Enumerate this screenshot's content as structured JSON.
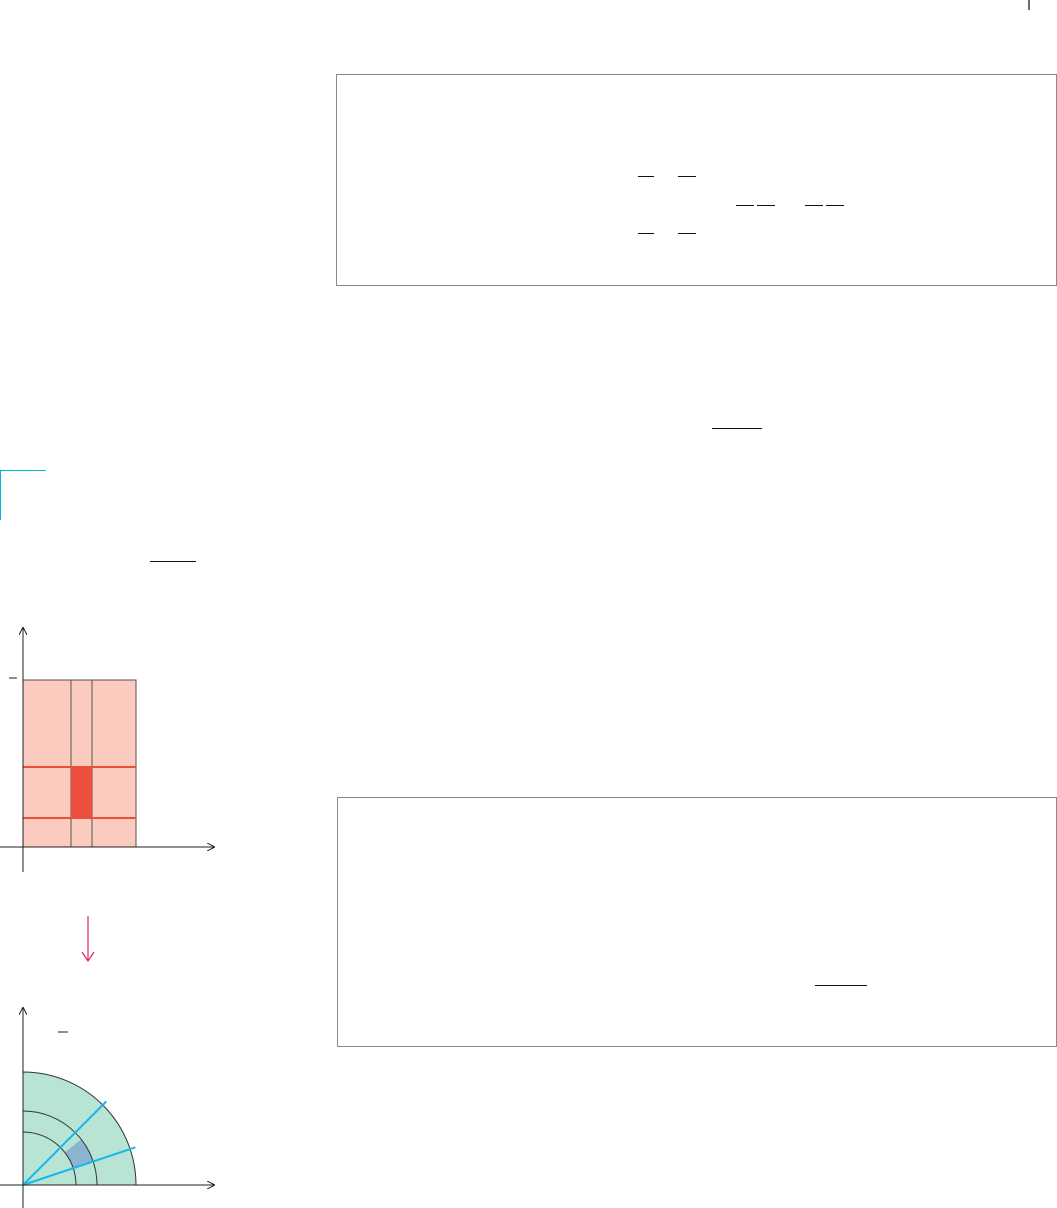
{
  "diagram": {
    "rect_region": {
      "fill": "#fbcbbf",
      "highlight_fill": "#ef4f3f",
      "grid_line_color": "#e8503a",
      "outline_color": "#555555",
      "axis_color": "#222222"
    },
    "polar_region": {
      "fill": "#b7e4d3",
      "highlight_fill": "#8ab4cf",
      "arc_color": "#333333",
      "ray_color": "#19b6ec",
      "axis_color": "#222222"
    },
    "mapping_arrow": {
      "color": "#e2245a"
    },
    "accent_colors": {
      "side_bracket": "#00b4d8",
      "box_border": "#8a8a8a"
    },
    "icons": [
      "down-arrow-icon",
      "axis-arrow-icon"
    ]
  }
}
